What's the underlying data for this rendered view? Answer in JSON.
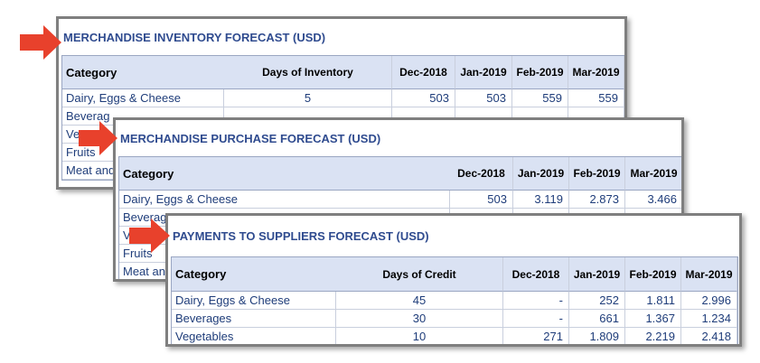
{
  "panels": [
    {
      "title": "MERCHANDISE INVENTORY FORECAST (USD)",
      "columns": [
        "Category",
        "Days of Inventory",
        "Dec-2018",
        "Jan-2019",
        "Feb-2019",
        "Mar-2019"
      ],
      "rows": [
        [
          "Dairy, Eggs & Cheese",
          "5",
          "503",
          "503",
          "559",
          "559"
        ],
        [
          "Beverag"
        ],
        [
          "Veg"
        ],
        [
          "Fruits"
        ],
        [
          "Meat and"
        ]
      ]
    },
    {
      "title": "MERCHANDISE PURCHASE FORECAST (USD)",
      "columns": [
        "Category",
        "Dec-2018",
        "Jan-2019",
        "Feb-2019",
        "Mar-2019"
      ],
      "rows": [
        [
          "Dairy, Eggs & Cheese",
          "503",
          "3.119",
          "2.873",
          "3.466"
        ],
        [
          "Beverag"
        ],
        [
          "Veg"
        ],
        [
          "Fruits"
        ],
        [
          "Meat an"
        ]
      ]
    },
    {
      "title": "PAYMENTS TO SUPPLIERS FORECAST (USD)",
      "columns": [
        "Category",
        "Days of Credit",
        "Dec-2018",
        "Jan-2019",
        "Feb-2019",
        "Mar-2019"
      ],
      "rows": [
        [
          "Dairy, Eggs & Cheese",
          "45",
          "-",
          "252",
          "1.811",
          "2.996"
        ],
        [
          "Beverages",
          "30",
          "-",
          "661",
          "1.367",
          "1.234"
        ],
        [
          "Vegetables",
          "10",
          "271",
          "1.809",
          "2.219",
          "2.418"
        ]
      ]
    }
  ]
}
